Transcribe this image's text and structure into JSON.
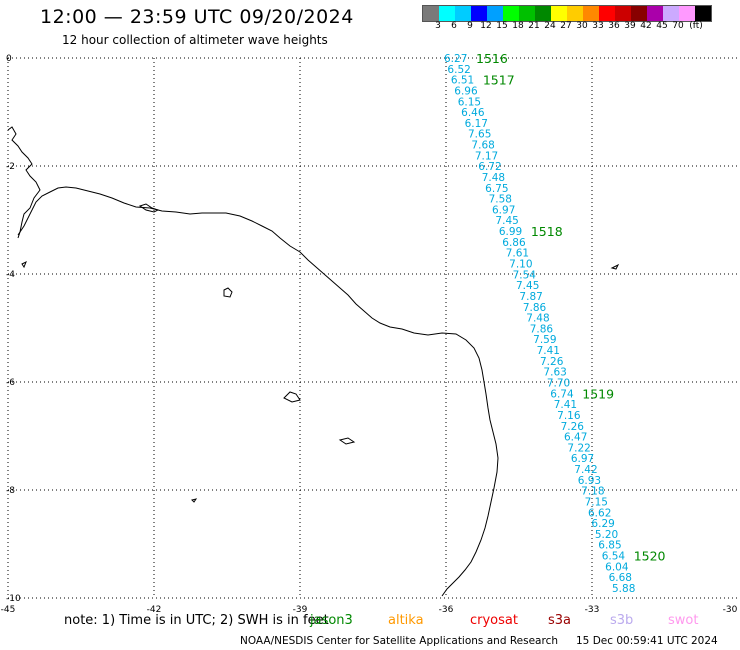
{
  "header": {
    "title": "12:00 — 23:59 UTC 09/20/2024",
    "subtitle": "12 hour collection of altimeter wave heights"
  },
  "legend": {
    "labels": [
      "3",
      "6",
      "9",
      "12",
      "15",
      "18",
      "21",
      "24",
      "27",
      "30",
      "33",
      "36",
      "39",
      "42",
      "45",
      "70",
      "(ft)"
    ],
    "colors": [
      "#7a7a7a",
      "#00ffff",
      "#00ccff",
      "#0000ff",
      "#00a0ff",
      "#00ff00",
      "#00c000",
      "#008800",
      "#ffff00",
      "#ffcc00",
      "#ff8800",
      "#ff0000",
      "#cc0000",
      "#880000",
      "#aa00aa",
      "#ccaaff",
      "#ff99ff",
      "#000000"
    ]
  },
  "axes": {
    "x_ticks": [
      "-45",
      "-42",
      "-39",
      "-36",
      "-33",
      "-30"
    ],
    "y_ticks": [
      "0",
      "-2",
      "-4",
      "-6",
      "-8",
      "-10"
    ],
    "lon_range": [
      -45,
      -30
    ],
    "lat_range": [
      -10,
      0
    ]
  },
  "track": {
    "color": "#00aadd",
    "values": [
      "6.27",
      "6.52",
      "6.51",
      "6.96",
      "6.15",
      "6.46",
      "6.17",
      "7.65",
      "7.68",
      "7.17",
      "6.72",
      "7.48",
      "6.75",
      "7.58",
      "6.97",
      "7.45",
      "6.99",
      "6.86",
      "7.61",
      "7.10",
      "7.54",
      "7.45",
      "7.87",
      "7.86",
      "7.48",
      "7.86",
      "7.59",
      "7.41",
      "7.26",
      "7.63",
      "7.70",
      "6.74",
      "7.41",
      "7.16",
      "7.26",
      "6.47",
      "7.22",
      "6.97",
      "7.42",
      "6.93",
      "7.18",
      "7.15",
      "6.62",
      "6.29",
      "5.20",
      "6.85",
      "6.54",
      "6.04",
      "6.68",
      "5.88"
    ]
  },
  "time_labels": {
    "color": "#008800",
    "items": [
      {
        "text": "1516",
        "index": 0
      },
      {
        "text": "1517",
        "index": 2
      },
      {
        "text": "1518",
        "index": 16
      },
      {
        "text": "1519",
        "index": 31
      },
      {
        "text": "1520",
        "index": 46
      }
    ]
  },
  "footer": {
    "note": "note: 1) Time is in UTC; 2) SWH is in feet",
    "satellites": [
      {
        "name": "jason3",
        "color": "#008800"
      },
      {
        "name": "altika",
        "color": "#ff9900"
      },
      {
        "name": "cryosat",
        "color": "#ee0000"
      },
      {
        "name": "s3a",
        "color": "#990000"
      },
      {
        "name": "s3b",
        "color": "#bbaaee"
      },
      {
        "name": "swot",
        "color": "#ff99ee"
      }
    ],
    "credit": "NOAA/NESDIS Center for Satellite Applications and Research",
    "timestamp": "15 Dec 00:59:41 UTC 2024"
  }
}
